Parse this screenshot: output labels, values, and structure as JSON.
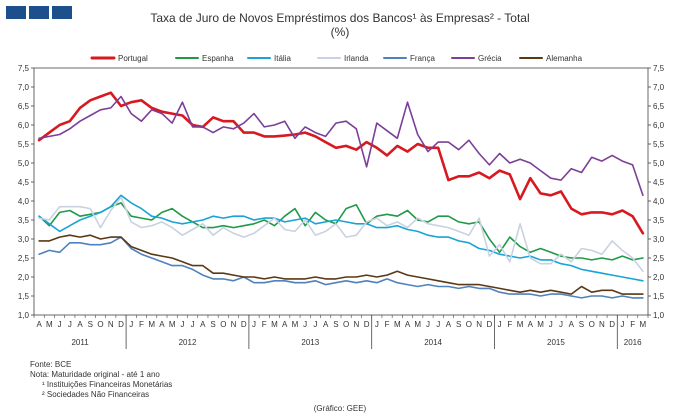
{
  "header": {
    "title": "Taxa de Juro de Novos Empréstimos dos Bancos¹ às Empresas² - Total",
    "unit": "(%)"
  },
  "notes": {
    "source": "Fonte: BCE",
    "note_label": "Nota: Maturidade original - até 1 ano",
    "footnote1": "¹ Instituições Financeiras Monetárias",
    "footnote2": "² Sociedades Não Financeiras",
    "graph_credit": "(Gráfico: GEE)"
  },
  "chart_data": {
    "type": "line",
    "title": "Taxa de Juro de Novos Empréstimos dos Bancos¹ às Empresas² - Total",
    "ylabel": "(%)",
    "ylim": [
      1.0,
      7.5
    ],
    "yticks": [
      "1,0",
      "1,5",
      "2,0",
      "2,5",
      "3,0",
      "3,5",
      "4,0",
      "4,5",
      "5,0",
      "5,5",
      "6,0",
      "6,5",
      "7,0",
      "7,5"
    ],
    "grid": false,
    "legend_position": "top",
    "month_labels": [
      "A",
      "M",
      "J",
      "J",
      "A",
      "S",
      "O",
      "N",
      "D",
      "J",
      "F",
      "M",
      "A",
      "M",
      "J",
      "J",
      "A",
      "S",
      "O",
      "N",
      "D",
      "J",
      "F",
      "M",
      "A",
      "M",
      "J",
      "J",
      "A",
      "S",
      "O",
      "N",
      "D",
      "J",
      "F",
      "M",
      "A",
      "M",
      "J",
      "J",
      "A",
      "S",
      "O",
      "N",
      "D",
      "J",
      "F",
      "M",
      "A",
      "M",
      "J",
      "J",
      "A",
      "S",
      "O",
      "N",
      "D",
      "J",
      "F",
      "M"
    ],
    "years": [
      {
        "label": "2011",
        "start": 0,
        "end": 8
      },
      {
        "label": "2012",
        "start": 9,
        "end": 20
      },
      {
        "label": "2013",
        "start": 21,
        "end": 32
      },
      {
        "label": "2014",
        "start": 33,
        "end": 44
      },
      {
        "label": "2015",
        "start": 45,
        "end": 56
      },
      {
        "label": "2016",
        "start": 57,
        "end": 59
      }
    ],
    "series": [
      {
        "name": "Portugal",
        "color": "#d71920",
        "width": 2.6,
        "values": [
          5.6,
          5.8,
          6.0,
          6.1,
          6.45,
          6.65,
          6.75,
          6.85,
          6.5,
          6.6,
          6.65,
          6.45,
          6.35,
          6.3,
          6.25,
          6.0,
          5.95,
          6.2,
          6.1,
          6.1,
          5.8,
          5.8,
          5.7,
          5.7,
          5.72,
          5.75,
          5.8,
          5.7,
          5.55,
          5.4,
          5.45,
          5.35,
          5.55,
          5.4,
          5.2,
          5.45,
          5.3,
          5.5,
          5.4,
          5.4,
          4.55,
          4.65,
          4.65,
          4.75,
          4.6,
          4.8,
          4.7,
          4.05,
          4.6,
          4.2,
          4.15,
          4.25,
          3.8,
          3.65,
          3.7,
          3.7,
          3.65,
          3.75,
          3.6,
          3.15
        ]
      },
      {
        "name": "Espanha",
        "color": "#1f9a48",
        "width": 1.6,
        "values": [
          3.6,
          3.35,
          3.7,
          3.75,
          3.6,
          3.65,
          3.7,
          3.85,
          3.95,
          3.6,
          3.55,
          3.5,
          3.7,
          3.8,
          3.6,
          3.45,
          3.3,
          3.3,
          3.35,
          3.3,
          3.35,
          3.4,
          3.5,
          3.35,
          3.6,
          3.8,
          3.35,
          3.7,
          3.5,
          3.4,
          3.8,
          3.9,
          3.4,
          3.6,
          3.65,
          3.6,
          3.75,
          3.5,
          3.45,
          3.6,
          3.6,
          3.45,
          3.4,
          3.45,
          3.0,
          2.65,
          3.05,
          2.8,
          2.65,
          2.75,
          2.65,
          2.55,
          2.5,
          2.5,
          2.45,
          2.5,
          2.45,
          2.55,
          2.45,
          2.5
        ]
      },
      {
        "name": "Itália",
        "color": "#1aa3d6",
        "width": 1.6,
        "values": [
          3.6,
          3.4,
          3.2,
          3.35,
          3.5,
          3.6,
          3.7,
          3.85,
          4.15,
          3.95,
          3.8,
          3.6,
          3.55,
          3.45,
          3.4,
          3.45,
          3.5,
          3.6,
          3.55,
          3.6,
          3.6,
          3.5,
          3.55,
          3.55,
          3.45,
          3.5,
          3.55,
          3.4,
          3.45,
          3.5,
          3.45,
          3.4,
          3.4,
          3.3,
          3.3,
          3.35,
          3.25,
          3.2,
          3.1,
          3.05,
          3.05,
          2.95,
          2.9,
          2.75,
          2.7,
          2.6,
          2.55,
          2.5,
          2.55,
          2.45,
          2.45,
          2.35,
          2.3,
          2.2,
          2.15,
          2.1,
          2.05,
          2.0,
          1.95,
          1.9
        ]
      },
      {
        "name": "Irlanda",
        "color": "#c9d2e0",
        "width": 1.6,
        "values": [
          3.55,
          3.5,
          3.85,
          3.85,
          3.85,
          3.8,
          3.3,
          3.75,
          4.1,
          3.45,
          3.3,
          3.35,
          3.45,
          3.3,
          3.1,
          3.25,
          3.4,
          3.1,
          3.3,
          3.15,
          3.05,
          3.15,
          3.35,
          3.55,
          3.25,
          3.2,
          3.5,
          3.1,
          3.2,
          3.4,
          3.05,
          3.1,
          3.45,
          3.55,
          3.35,
          3.45,
          3.3,
          3.55,
          3.4,
          3.35,
          3.3,
          3.2,
          3.1,
          3.55,
          2.55,
          2.85,
          2.4,
          3.4,
          2.5,
          2.35,
          2.35,
          2.6,
          2.4,
          2.75,
          2.7,
          2.6,
          2.95,
          2.7,
          2.5,
          2.15
        ]
      },
      {
        "name": "França",
        "color": "#4f81bd",
        "width": 1.6,
        "values": [
          2.6,
          2.7,
          2.65,
          2.9,
          2.9,
          2.85,
          2.85,
          2.9,
          3.05,
          2.75,
          2.6,
          2.5,
          2.4,
          2.3,
          2.3,
          2.2,
          2.05,
          1.95,
          1.95,
          1.9,
          2.0,
          1.85,
          1.85,
          1.9,
          1.9,
          1.85,
          1.85,
          1.9,
          1.8,
          1.85,
          1.9,
          1.85,
          1.9,
          1.85,
          1.95,
          1.85,
          1.8,
          1.75,
          1.8,
          1.75,
          1.75,
          1.7,
          1.75,
          1.7,
          1.7,
          1.6,
          1.55,
          1.55,
          1.55,
          1.5,
          1.55,
          1.55,
          1.5,
          1.45,
          1.5,
          1.5,
          1.45,
          1.5,
          1.45,
          1.45
        ]
      },
      {
        "name": "Grécia",
        "color": "#7b3f98",
        "width": 1.6,
        "values": [
          5.65,
          5.7,
          5.75,
          5.9,
          6.1,
          6.25,
          6.4,
          6.45,
          6.75,
          6.3,
          6.1,
          6.4,
          6.3,
          6.05,
          6.6,
          5.95,
          5.95,
          5.8,
          5.95,
          5.9,
          6.05,
          6.3,
          5.95,
          6.0,
          6.1,
          5.65,
          5.95,
          5.8,
          5.7,
          6.05,
          6.1,
          5.9,
          4.9,
          6.05,
          5.85,
          5.65,
          6.6,
          5.75,
          5.3,
          5.55,
          5.55,
          5.35,
          5.6,
          5.25,
          4.95,
          5.25,
          5.0,
          5.1,
          5.0,
          4.8,
          4.6,
          4.55,
          4.85,
          4.75,
          5.15,
          5.05,
          5.2,
          5.05,
          4.95,
          4.15
        ]
      },
      {
        "name": "Alemanha",
        "color": "#5a3914",
        "width": 1.6,
        "values": [
          2.95,
          2.95,
          3.05,
          3.1,
          3.05,
          3.1,
          3.0,
          3.05,
          3.05,
          2.8,
          2.7,
          2.6,
          2.55,
          2.5,
          2.4,
          2.3,
          2.3,
          2.1,
          2.1,
          2.05,
          2.0,
          2.0,
          1.95,
          2.0,
          1.95,
          1.95,
          1.95,
          2.0,
          1.95,
          1.95,
          2.0,
          2.0,
          2.05,
          2.0,
          2.05,
          2.15,
          2.05,
          2.0,
          1.95,
          1.9,
          1.85,
          1.8,
          1.8,
          1.8,
          1.75,
          1.7,
          1.65,
          1.6,
          1.65,
          1.6,
          1.65,
          1.6,
          1.55,
          1.75,
          1.6,
          1.65,
          1.65,
          1.55,
          1.55,
          1.55
        ]
      }
    ]
  }
}
